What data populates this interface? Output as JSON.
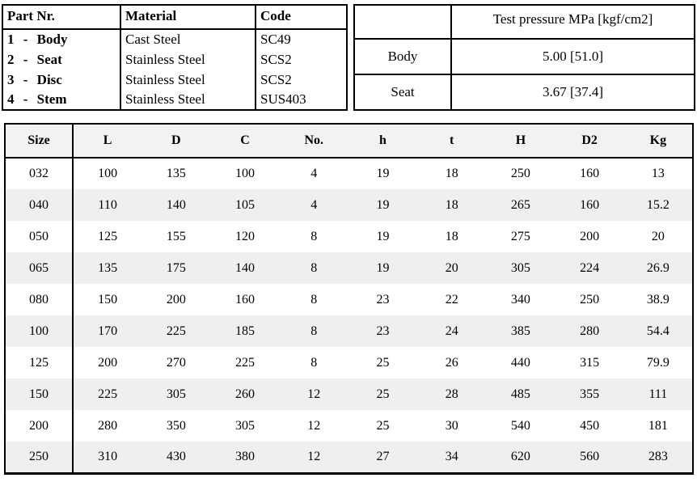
{
  "colors": {
    "border": "#000000",
    "table_header_bg": "#f2f2f2",
    "row_alt_bg": "#efefef",
    "text": "#000000",
    "page_bg": "#ffffff"
  },
  "parts_table": {
    "headers": [
      "Part Nr.",
      "Material",
      "Code"
    ],
    "rows": [
      [
        "1 - Body",
        "Cast Steel",
        "SC49"
      ],
      [
        "2 - Seat",
        "Stainless Steel",
        "SCS2"
      ],
      [
        "3 - Disc",
        "Stainless Steel",
        "SCS2"
      ],
      [
        "4 - Stem",
        "Stainless Steel",
        "SUS403"
      ]
    ]
  },
  "pressure_table": {
    "headers": [
      "",
      "Test pressure MPa [kgf/cm2]"
    ],
    "rows": [
      [
        "Body",
        "5.00 [51.0]"
      ],
      [
        "Seat",
        "3.67 [37.4]"
      ]
    ]
  },
  "dimensions_table": {
    "headers": [
      "Size",
      "L",
      "D",
      "C",
      "No.",
      "h",
      "t",
      "H",
      "D2",
      "Kg"
    ],
    "rows": [
      [
        "032",
        "100",
        "135",
        "100",
        "4",
        "19",
        "18",
        "250",
        "160",
        "13"
      ],
      [
        "040",
        "110",
        "140",
        "105",
        "4",
        "19",
        "18",
        "265",
        "160",
        "15.2"
      ],
      [
        "050",
        "125",
        "155",
        "120",
        "8",
        "19",
        "18",
        "275",
        "200",
        "20"
      ],
      [
        "065",
        "135",
        "175",
        "140",
        "8",
        "19",
        "20",
        "305",
        "224",
        "26.9"
      ],
      [
        "080",
        "150",
        "200",
        "160",
        "8",
        "23",
        "22",
        "340",
        "250",
        "38.9"
      ],
      [
        "100",
        "170",
        "225",
        "185",
        "8",
        "23",
        "24",
        "385",
        "280",
        "54.4"
      ],
      [
        "125",
        "200",
        "270",
        "225",
        "8",
        "25",
        "26",
        "440",
        "315",
        "79.9"
      ],
      [
        "150",
        "225",
        "305",
        "260",
        "12",
        "25",
        "28",
        "485",
        "355",
        "111"
      ],
      [
        "200",
        "280",
        "350",
        "305",
        "12",
        "25",
        "30",
        "540",
        "450",
        "181"
      ],
      [
        "250",
        "310",
        "430",
        "380",
        "12",
        "27",
        "34",
        "620",
        "560",
        "283"
      ]
    ]
  }
}
